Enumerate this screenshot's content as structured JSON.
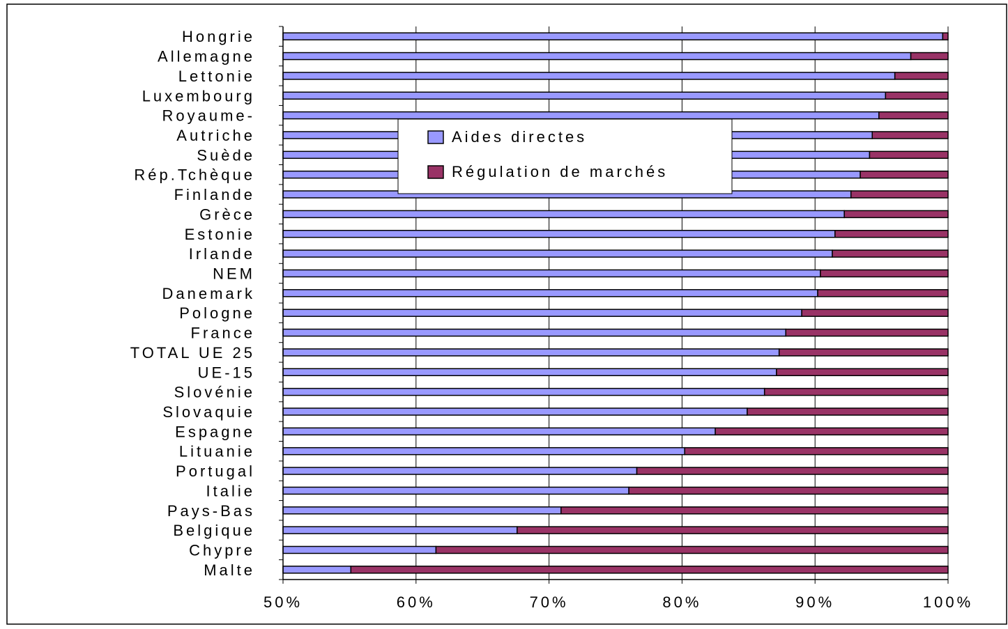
{
  "chart_data": {
    "type": "bar",
    "orientation": "horizontal",
    "stacked": "percent",
    "categories": [
      "Hongrie",
      "Allemagne",
      "Lettonie",
      "Luxembourg",
      "Royaume-",
      "Autriche",
      "Suède",
      "Rép.Tchèque",
      "Finlande",
      "Grèce",
      "Estonie",
      "Irlande",
      "NEM",
      "Danemark",
      "Pologne",
      "France",
      "TOTAL UE 25",
      "UE-15",
      "Slovénie",
      "Slovaquie",
      "Espagne",
      "Lituanie",
      "Portugal",
      "Italie",
      "Pays-Bas",
      "Belgique",
      "Chypre",
      "Malte"
    ],
    "series": [
      {
        "name": "Aides directes",
        "color": "#9999ff",
        "values": [
          99.6,
          97.2,
          96.0,
          95.3,
          94.8,
          94.3,
          94.1,
          93.4,
          92.7,
          92.2,
          91.5,
          91.3,
          90.4,
          90.2,
          89.0,
          87.8,
          87.3,
          87.1,
          86.2,
          84.9,
          82.5,
          80.2,
          76.6,
          76.0,
          70.9,
          67.6,
          61.5,
          55.1
        ]
      },
      {
        "name": "Régulation de marchés",
        "color": "#993366",
        "values": [
          0.4,
          2.8,
          4.0,
          4.7,
          5.2,
          5.7,
          5.9,
          6.6,
          7.3,
          7.8,
          8.5,
          8.7,
          9.6,
          9.8,
          11.0,
          12.2,
          12.7,
          12.9,
          13.8,
          15.1,
          17.5,
          19.8,
          23.4,
          24.0,
          29.1,
          32.4,
          38.5,
          44.9
        ]
      }
    ],
    "xlim": [
      50,
      100
    ],
    "xticks": [
      "50%",
      "60%",
      "70%",
      "80%",
      "90%",
      "100%"
    ],
    "grid": true,
    "legend_position": "top-center-inside"
  }
}
